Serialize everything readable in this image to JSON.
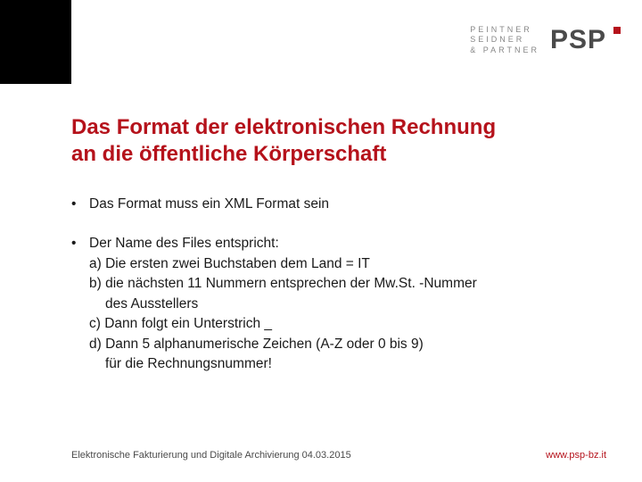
{
  "logo": {
    "line1": "PEINTNER",
    "line2": "SEIDNER",
    "line3": "& PARTNER",
    "brand": "PSP"
  },
  "title": {
    "line1": "Das Format der elektronischen Rechnung",
    "line2": "an die öffentliche Körperschaft"
  },
  "bullet1": "Das Format muss ein XML Format sein",
  "bullet2": {
    "lead": "Der Name des Files entspricht:",
    "a": "a) Die ersten zwei Buchstaben dem Land = IT",
    "b1": "b) die nächsten 11 Nummern entsprechen der Mw.St. -Nummer",
    "b2": "des Ausstellers",
    "c": "c) Dann folgt ein Unterstrich _",
    "d1": "d) Dann 5 alphanumerische Zeichen (A-Z oder 0 bis 9)",
    "d2": "für die Rechnungsnummer!"
  },
  "footer": {
    "left": "Elektronische Fakturierung und Digitale Archivierung  04.03.2015",
    "right": "www.psp-bz.it"
  },
  "colors": {
    "accent": "#b5121b",
    "text": "#1a1a1a",
    "logo_grey": "#878787",
    "logo_dark": "#4a4a4a"
  }
}
